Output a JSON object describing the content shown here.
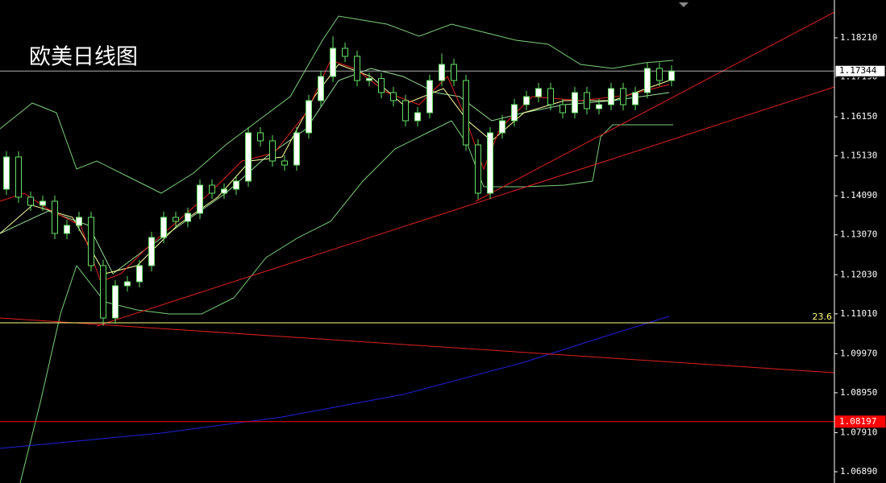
{
  "chart_data": {
    "type": "candlestick",
    "title": "欧美日线图",
    "open": [
      1.14262,
      1.15102,
      1.14052,
      1.13842,
      1.13947,
      1.13107,
      1.13317,
      1.13527,
      1.12267,
      1.10902,
      1.11742,
      1.11847,
      1.12267,
      1.13002,
      1.13527,
      1.13422,
      1.13632,
      1.14367,
      1.14157,
      1.14262,
      1.14472,
      1.15732,
      1.15522,
      1.14997,
      1.14892,
      1.15732,
      1.16572,
      1.17202,
      1.17937,
      1.17727,
      1.17097,
      1.17147,
      1.16782,
      1.16572,
      1.16047,
      1.16257,
      1.17097,
      1.17517,
      1.17097,
      1.15417,
      1.14157,
      1.15732,
      1.16047,
      1.16467,
      1.16677,
      1.16887,
      1.16467,
      1.16257,
      1.16782,
      1.16362,
      1.16467,
      1.16887,
      1.16467,
      1.16782,
      1.17412,
      1.17097
    ],
    "high": [
      1.15252,
      1.15252,
      1.14202,
      1.14097,
      1.14097,
      1.13467,
      1.13677,
      1.13677,
      1.12417,
      1.11892,
      1.11997,
      1.12417,
      1.13152,
      1.13677,
      1.13677,
      1.13782,
      1.14517,
      1.14517,
      1.14412,
      1.14622,
      1.15882,
      1.15882,
      1.15672,
      1.15147,
      1.15882,
      1.16722,
      1.17352,
      1.1825,
      1.18087,
      1.17877,
      1.17297,
      1.17297,
      1.16932,
      1.16722,
      1.16407,
      1.17247,
      1.178,
      1.17667,
      1.17247,
      1.15567,
      1.15882,
      1.16197,
      1.16617,
      1.16827,
      1.17037,
      1.17037,
      1.16617,
      1.16932,
      1.16932,
      1.16617,
      1.17037,
      1.17037,
      1.16932,
      1.17562,
      1.17562,
      1.17494
    ],
    "low": [
      1.14112,
      1.13902,
      1.13692,
      1.13692,
      1.12957,
      1.12957,
      1.13167,
      1.12117,
      1.107,
      1.10752,
      1.11592,
      1.11697,
      1.12117,
      1.12852,
      1.13272,
      1.13272,
      1.13482,
      1.14007,
      1.14007,
      1.14112,
      1.14322,
      1.15372,
      1.14847,
      1.14742,
      1.14742,
      1.15582,
      1.16422,
      1.17052,
      1.17577,
      1.16947,
      1.16947,
      1.16632,
      1.16422,
      1.15897,
      1.15897,
      1.16107,
      1.16947,
      1.16947,
      1.15267,
      1.14,
      1.14007,
      1.15582,
      1.15897,
      1.16317,
      1.16527,
      1.16317,
      1.16107,
      1.16107,
      1.16212,
      1.16212,
      1.16317,
      1.16317,
      1.16317,
      1.16632,
      1.16947,
      1.16947
    ],
    "close": [
      1.15102,
      1.14052,
      1.13842,
      1.13947,
      1.13107,
      1.13317,
      1.13527,
      1.12267,
      1.10902,
      1.11742,
      1.11847,
      1.12267,
      1.13002,
      1.13527,
      1.13422,
      1.13632,
      1.14367,
      1.14157,
      1.14262,
      1.14472,
      1.15732,
      1.15522,
      1.14997,
      1.14892,
      1.15732,
      1.16572,
      1.17202,
      1.17937,
      1.17727,
      1.17097,
      1.17147,
      1.16782,
      1.16572,
      1.16047,
      1.16257,
      1.17097,
      1.17517,
      1.17097,
      1.15417,
      1.14157,
      1.15732,
      1.16047,
      1.16467,
      1.16677,
      1.16887,
      1.16467,
      1.16257,
      1.16782,
      1.16362,
      1.16467,
      1.16887,
      1.16467,
      1.16782,
      1.17412,
      1.17097,
      1.17344
    ],
    "up_color": "#ffffff",
    "down_color": "#000000",
    "wick_color": "#66e066",
    "ylim": [
      1.06596,
      1.19197
    ],
    "yticks": [
      {
        "value": 1.1821,
        "label": "1.18210"
      },
      {
        "value": 1.1719,
        "label": "1.17190"
      },
      {
        "value": 1.1615,
        "label": "1.16150"
      },
      {
        "value": 1.1513,
        "label": "1.15130"
      },
      {
        "value": 1.1409,
        "label": "1.14090"
      },
      {
        "value": 1.1307,
        "label": "1.13070"
      },
      {
        "value": 1.1203,
        "label": "1.12030"
      },
      {
        "value": 1.1101,
        "label": "1.11010"
      },
      {
        "value": 1.0997,
        "label": "1.09970"
      },
      {
        "value": 1.0895,
        "label": "1.08950"
      },
      {
        "value": 1.0791,
        "label": "1.07910"
      },
      {
        "value": 1.0689,
        "label": "1.06890"
      }
    ],
    "levels": [
      {
        "value": 1.17344,
        "label": "1.17344",
        "color": "#b0b0b0",
        "tag": "box"
      },
      {
        "value": 1.10776,
        "label": "23.6",
        "color": "#ffff80",
        "tag": "text"
      },
      {
        "value": 1.08197,
        "label": "1.08197",
        "color": "#ff0000",
        "tag": "box"
      }
    ]
  }
}
